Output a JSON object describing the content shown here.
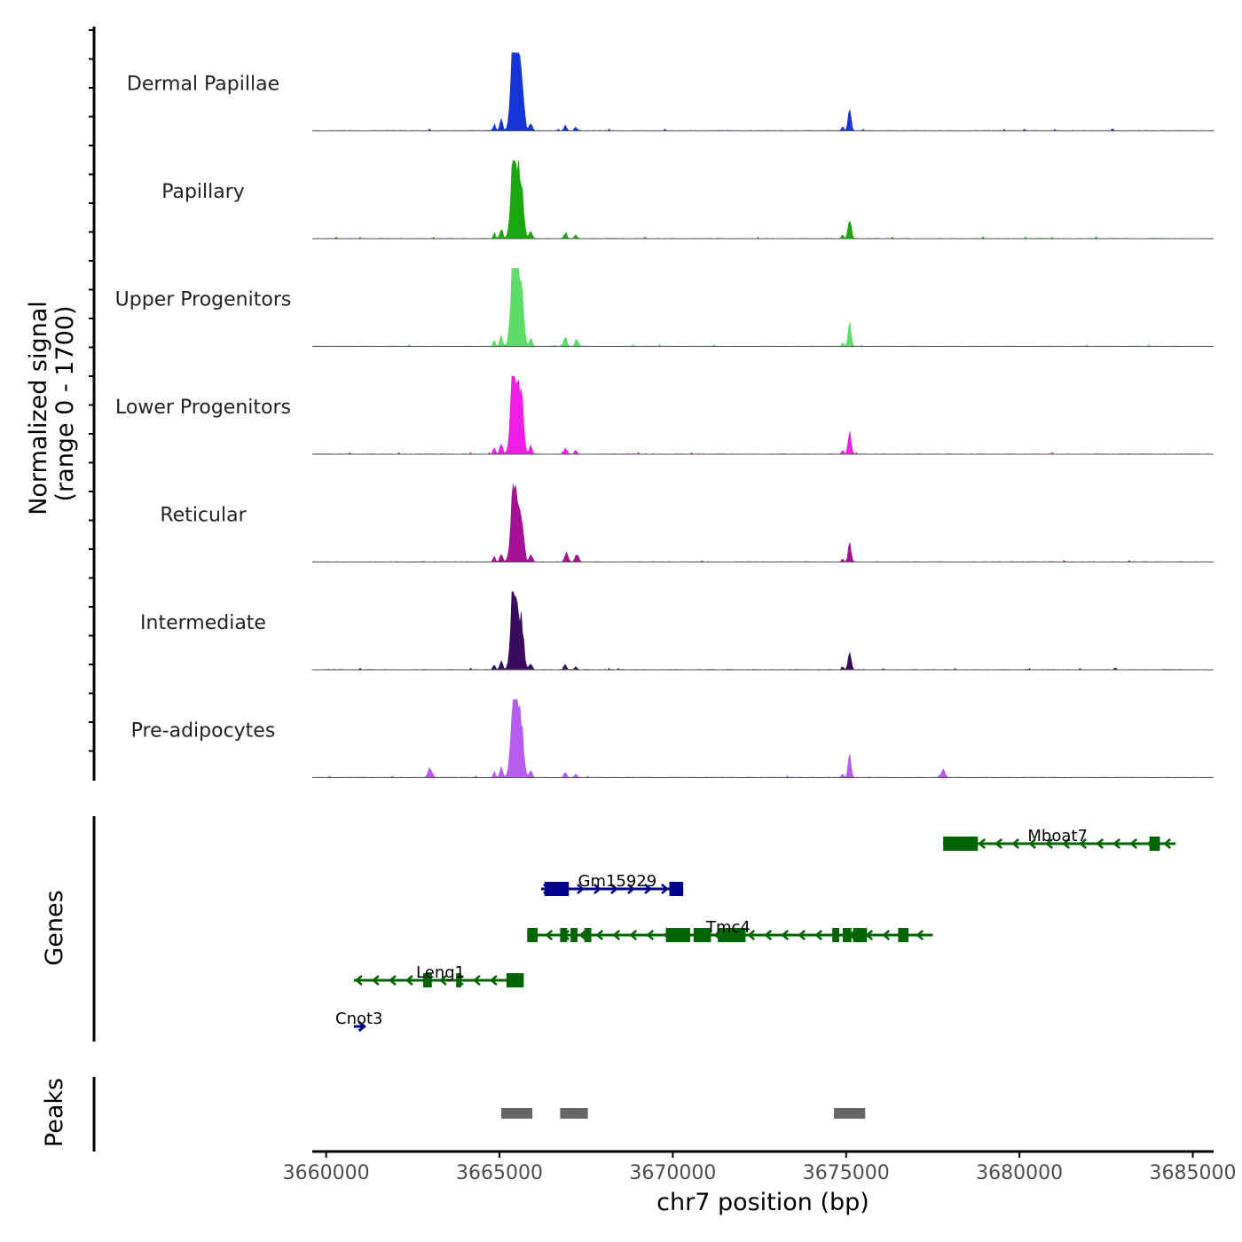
{
  "chart_data": {
    "type": "area",
    "chromosome": "chr7",
    "xlabel": "chr7 position (bp)",
    "xlim": [
      3659600,
      3685600
    ],
    "x_ticks": [
      3660000,
      3665000,
      3670000,
      3675000,
      3680000,
      3685000
    ],
    "x_tick_labels": [
      "3660000",
      "3665000",
      "3670000",
      "3675000",
      "3680000",
      "3685000"
    ],
    "ylabel_line1": "Normalized signal",
    "ylabel_line2": "(range 0 - 1700)",
    "ylim": [
      0,
      1700
    ],
    "peaks_main": [
      {
        "pos": 3665480,
        "w": 300,
        "h": 1.0
      },
      {
        "pos": 3665380,
        "w": 150,
        "h": 0.55
      },
      {
        "pos": 3665650,
        "w": 160,
        "h": 0.45
      },
      {
        "pos": 3665050,
        "w": 110,
        "h": 0.14
      },
      {
        "pos": 3664850,
        "w": 90,
        "h": 0.08
      },
      {
        "pos": 3665900,
        "w": 120,
        "h": 0.1
      },
      {
        "pos": 3666900,
        "w": 110,
        "h": 0.07
      },
      {
        "pos": 3667200,
        "w": 100,
        "h": 0.05
      },
      {
        "pos": 3675100,
        "w": 120,
        "h": 0.28
      },
      {
        "pos": 3674900,
        "w": 80,
        "h": 0.05
      }
    ],
    "series": [
      {
        "name": "Dermal Papillae",
        "color": "#1535d6",
        "scale": 0.98,
        "extra": []
      },
      {
        "name": "Papillary",
        "color": "#18a80e",
        "scale": 0.95,
        "extra": []
      },
      {
        "name": "Upper Progenitors",
        "color": "#5ddc6a",
        "scale": 1.0,
        "extra": [
          {
            "pos": 3666900,
            "w": 140,
            "h": 0.06
          },
          {
            "pos": 3667250,
            "w": 120,
            "h": 0.05
          }
        ]
      },
      {
        "name": "Lower Progenitors",
        "color": "#ef1ee6",
        "scale": 0.97,
        "extra": []
      },
      {
        "name": "Reticular",
        "color": "#a51094",
        "scale": 0.8,
        "extra": [
          {
            "pos": 3666950,
            "w": 130,
            "h": 0.1
          },
          {
            "pos": 3667250,
            "w": 120,
            "h": 0.1
          }
        ]
      },
      {
        "name": "Intermediate",
        "color": "#3a0a5e",
        "scale": 0.83,
        "extra": []
      },
      {
        "name": "Pre-adipocytes",
        "color": "#b75cf0",
        "scale": 0.95,
        "extra": [
          {
            "pos": 3663000,
            "w": 160,
            "h": 0.12
          },
          {
            "pos": 3677800,
            "w": 160,
            "h": 0.1
          }
        ]
      }
    ],
    "genes_label": "Genes",
    "genes": [
      {
        "name": "Mboat7",
        "strand": "-",
        "start": 3677800,
        "end": 3684500,
        "row": 0,
        "color": "#006400",
        "exons": [
          [
            3677800,
            3678800
          ],
          [
            3683750,
            3684050
          ]
        ],
        "label_pos": 3681100
      },
      {
        "name": "Gm15929",
        "strand": "+",
        "start": 3666200,
        "end": 3670300,
        "row": 1,
        "color": "#00008b",
        "exons": [
          [
            3666300,
            3667000
          ],
          [
            3669900,
            3670300
          ]
        ],
        "label_pos": 3668400
      },
      {
        "name": "Tmc4",
        "strand": "-",
        "start": 3665800,
        "end": 3677500,
        "row": 2,
        "color": "#006400",
        "exons": [
          [
            3665800,
            3666100
          ],
          [
            3666750,
            3666950
          ],
          [
            3667050,
            3667250
          ],
          [
            3667450,
            3667650
          ],
          [
            3669800,
            3670500
          ],
          [
            3670600,
            3671100
          ],
          [
            3671300,
            3672100
          ],
          [
            3674600,
            3674800
          ],
          [
            3674900,
            3675150
          ],
          [
            3675200,
            3675600
          ],
          [
            3676500,
            3676800
          ]
        ],
        "label_pos": 3671600
      },
      {
        "name": "Leng1",
        "strand": "-",
        "start": 3660800,
        "end": 3665700,
        "row": 3,
        "color": "#006400",
        "exons": [
          [
            3662800,
            3663050
          ],
          [
            3663750,
            3663900
          ],
          [
            3665200,
            3665700
          ]
        ],
        "label_pos": 3663300
      },
      {
        "name": "Cnot3",
        "strand": "+",
        "start": 3660800,
        "end": 3661100,
        "row": 4,
        "color": "#00008b",
        "exons": [],
        "label_pos": 3660950
      }
    ],
    "peaks_label": "Peaks",
    "peak_regions": [
      [
        3665050,
        3665950
      ],
      [
        3666750,
        3667550
      ],
      [
        3674650,
        3675550
      ]
    ],
    "peak_color": "#666666"
  }
}
